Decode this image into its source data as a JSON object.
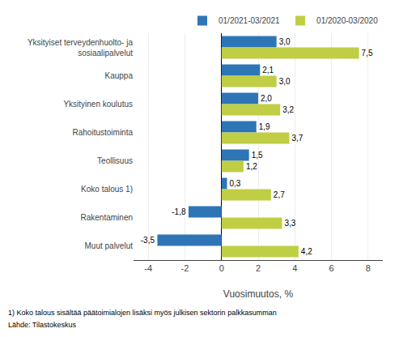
{
  "chart_data": {
    "type": "bar",
    "orientation": "horizontal",
    "categories": [
      "Yksityiset terveydenhuolto- ja\nsosiaalipalvelut",
      "Kauppa",
      "Yksityinen koulutus",
      "Rahoitustoiminta",
      "Teollisuus",
      "Koko talous 1)",
      "Rakentaminen",
      "Muut palvelut"
    ],
    "series": [
      {
        "name": "01/2021-03/2021",
        "color": "#2e75b6",
        "values": [
          3.0,
          2.1,
          2.0,
          1.9,
          1.5,
          0.3,
          -1.8,
          -3.5
        ],
        "value_labels": [
          "3,0",
          "2,1",
          "2,0",
          "1,9",
          "1,5",
          "0,3",
          "-1,8",
          "-3,5"
        ]
      },
      {
        "name": "01/2020-03/2020",
        "color": "#bfce44",
        "values": [
          7.5,
          3.0,
          3.2,
          3.7,
          1.2,
          2.7,
          3.3,
          4.2
        ],
        "value_labels": [
          "7,5",
          "3,0",
          "3,2",
          "3,7",
          "1,2",
          "2,7",
          "3,3",
          "4,2"
        ]
      }
    ],
    "xlabel": "Vuosimuutos, %",
    "xlim": [
      -4.8,
      8.8
    ],
    "xticks": [
      -4,
      -2,
      0,
      2,
      4,
      6,
      8
    ],
    "grid": true,
    "legend": "upper right",
    "data_labels": true,
    "annotations": [
      "1) Koko talous sisältää päätoimialojen lisäksi myös julkisen sektorin palkkasumman",
      "Lähde: Tilastokeskus"
    ]
  }
}
